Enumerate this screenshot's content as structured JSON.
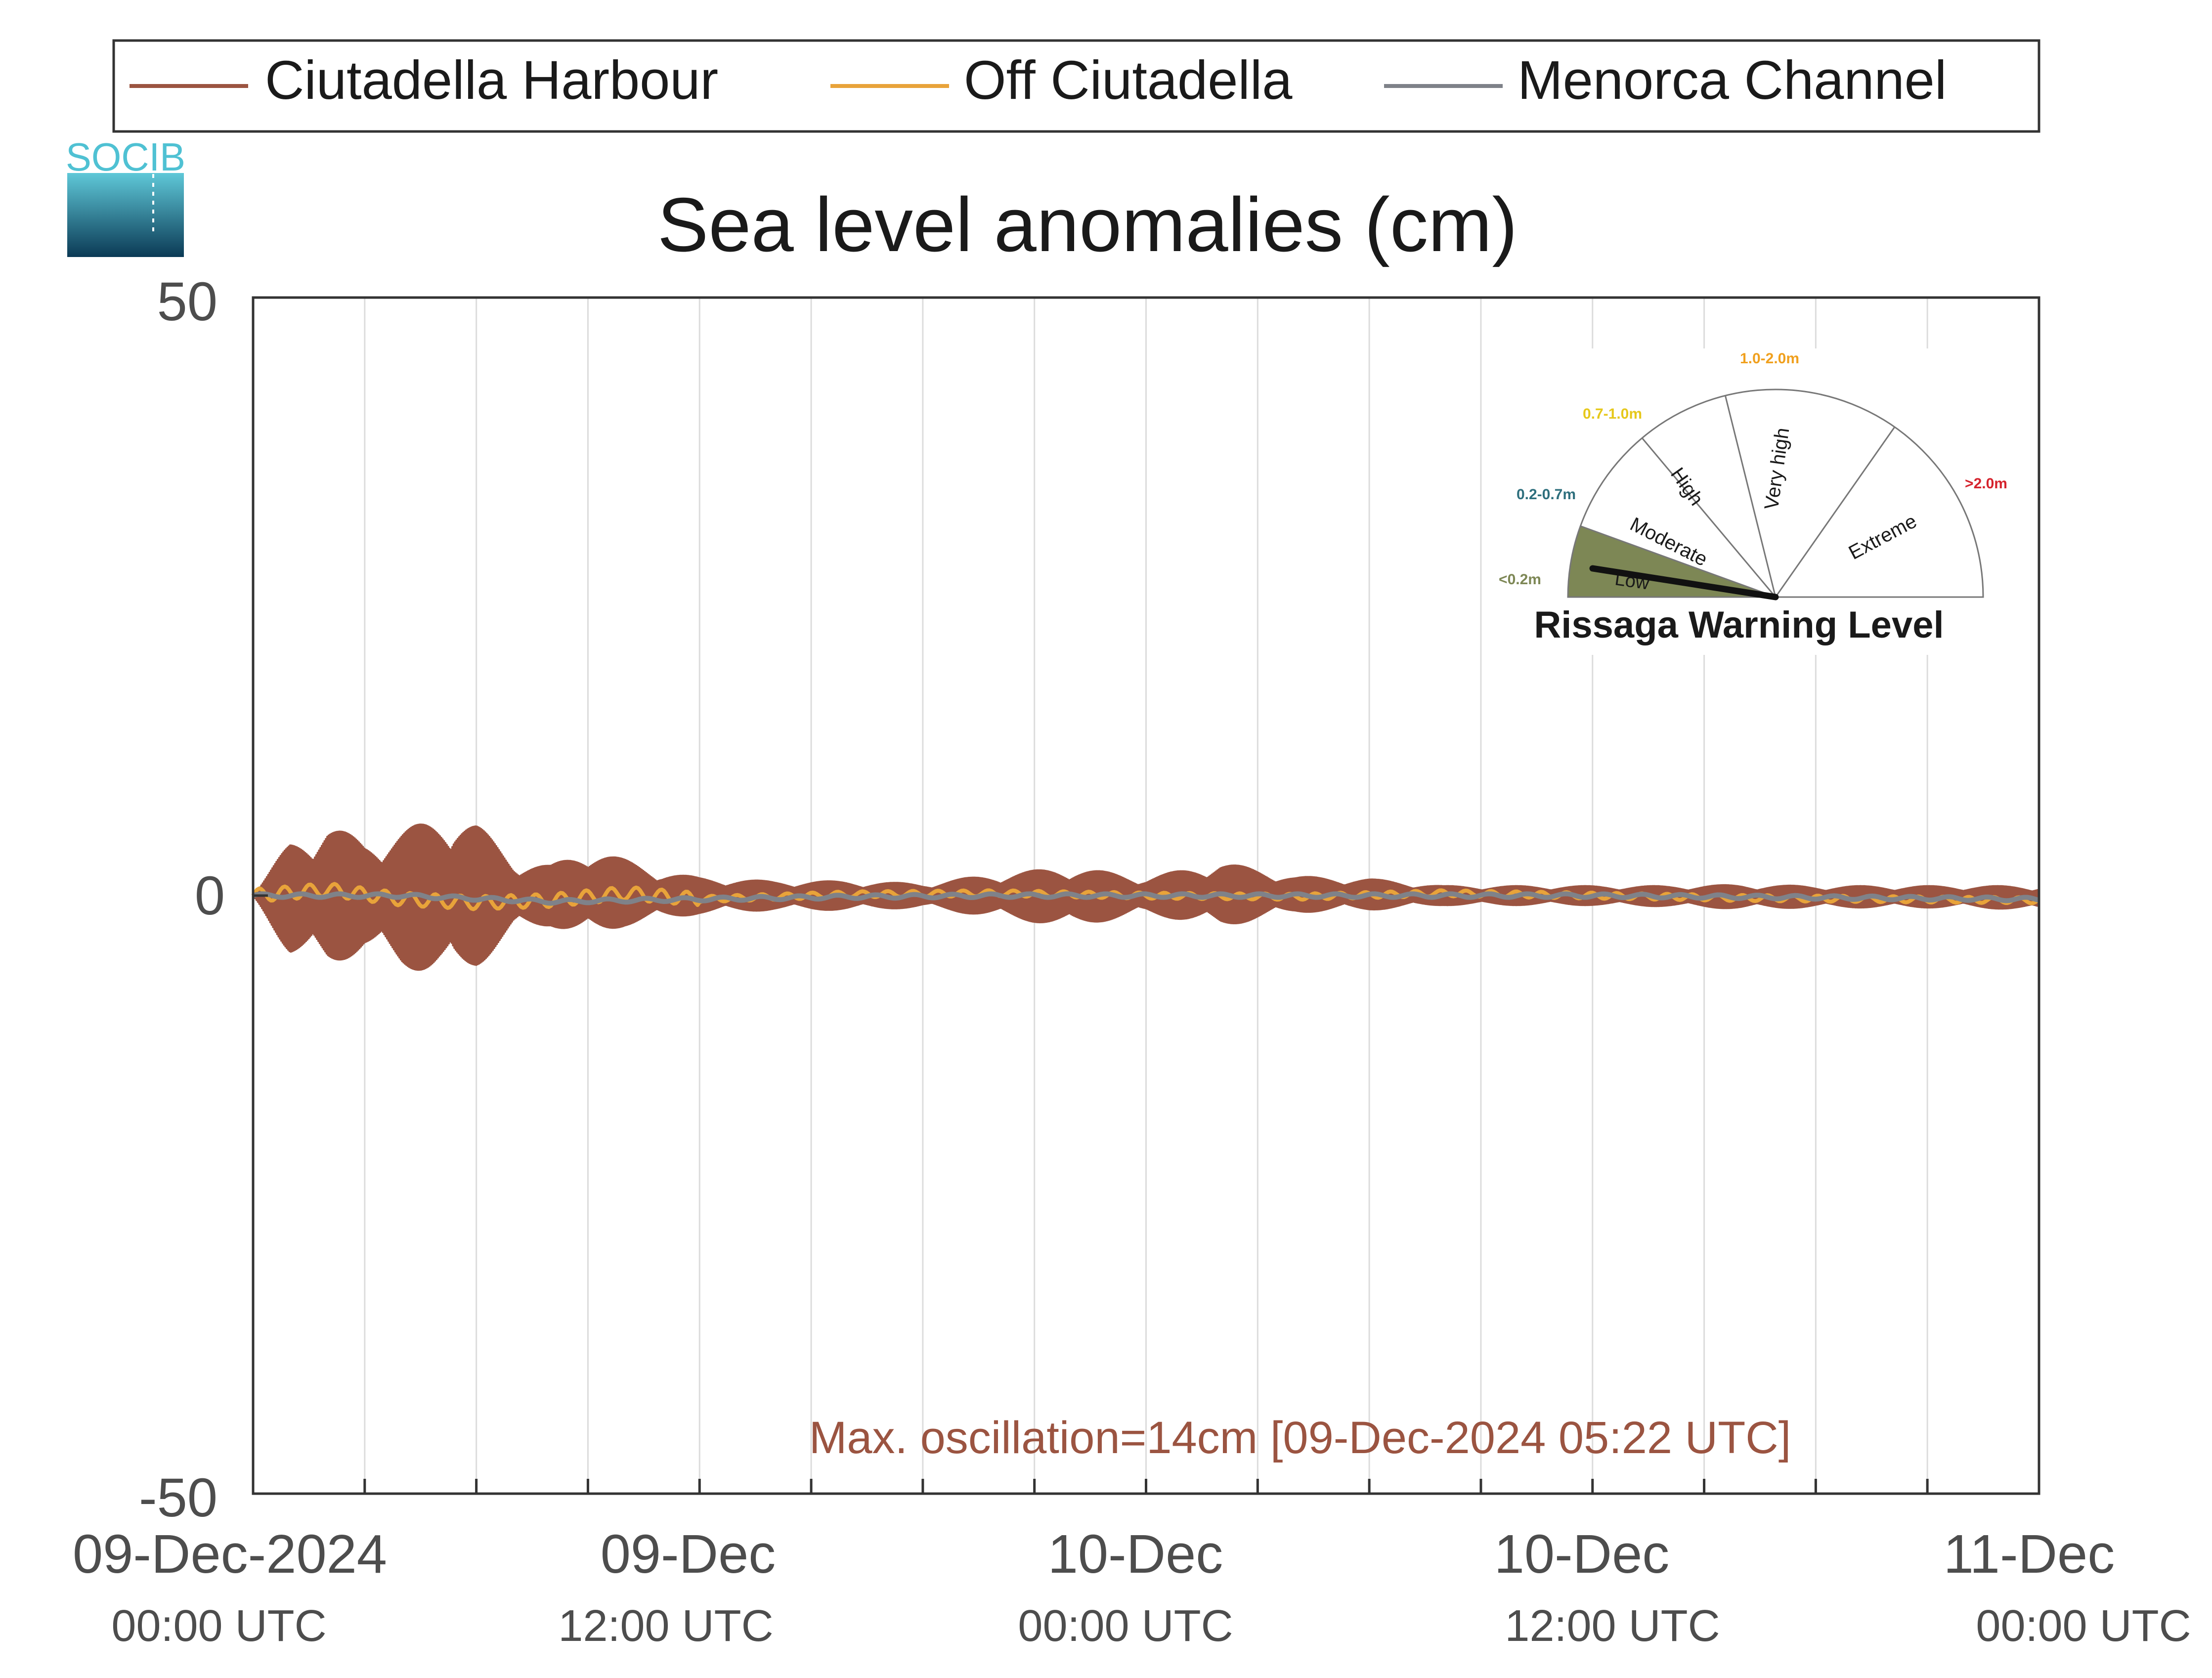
{
  "logo_text": "SOCIB",
  "colors": {
    "harbour": "#9b5441",
    "off": "#e8a33a",
    "channel": "#7f8289",
    "grid": "#dcdcdc",
    "axis": "#333333",
    "gauge_low": "#7d8755",
    "label_low": "#7d8755",
    "label_moderate": "#2e6f7d",
    "label_high": "#e6c81b",
    "label_veryhigh": "#f0a01e",
    "label_extreme": "#d5232d"
  },
  "chart_data": {
    "type": "line",
    "title": "Sea level anomalies (cm)",
    "xlabel": "",
    "ylabel": "",
    "ylim": [
      -50,
      50
    ],
    "yticks": [
      "50",
      "0",
      "-50"
    ],
    "xlim_hours": [
      0,
      48
    ],
    "xticks": [
      {
        "date": "09-Dec-2024",
        "time": "00:00 UTC"
      },
      {
        "date": "09-Dec",
        "time": "12:00 UTC"
      },
      {
        "date": "10-Dec",
        "time": "00:00 UTC"
      },
      {
        "date": "10-Dec",
        "time": "12:00 UTC"
      },
      {
        "date": "11-Dec",
        "time": "00:00 UTC"
      }
    ],
    "grid": true,
    "legend_position": "top",
    "series": [
      {
        "name": "Ciutadella Harbour",
        "color": "#9b5441",
        "envelope_time_hours": [
          0,
          1,
          2,
          3,
          4,
          5,
          5.4,
          6,
          7,
          8,
          9,
          10,
          11,
          12,
          14,
          16,
          18,
          20,
          22,
          24,
          26,
          28,
          30,
          32,
          34,
          36,
          38,
          40,
          42,
          44,
          46,
          48
        ],
        "envelope_upper_cm": [
          0,
          4.5,
          6,
          4.5,
          5.5,
          6.5,
          7,
          6,
          3,
          2.5,
          4,
          3,
          2,
          1.5,
          1.2,
          1.2,
          1,
          1.8,
          2.4,
          1.5,
          2.8,
          1.6,
          1.4,
          0.8,
          0.8,
          0.8,
          0.8,
          0.9,
          0.8,
          0.8,
          0.8,
          0.8
        ],
        "envelope_lower_cm": [
          0,
          -5,
          -6,
          -4.5,
          -6,
          -6.5,
          -7,
          -6,
          -3,
          -2.5,
          -3.5,
          -2.5,
          -2,
          -1.5,
          -1.2,
          -1.2,
          -1,
          -1.8,
          -2.6,
          -1.5,
          -2.6,
          -1.4,
          -1.2,
          -0.8,
          -0.8,
          -0.8,
          -0.9,
          -1.1,
          -1.0,
          -1.0,
          -1.0,
          -1.2
        ]
      },
      {
        "name": "Off Ciutadella",
        "color": "#e8a33a",
        "time_hours": [
          0,
          2,
          4,
          6,
          8,
          10,
          12,
          16,
          20,
          24,
          28,
          32,
          36,
          40,
          44,
          48
        ],
        "values_cm": [
          0,
          0.5,
          -0.3,
          -0.6,
          -0.4,
          0.2,
          -0.3,
          0.1,
          0.2,
          0,
          -0.1,
          0.2,
          0,
          -0.2,
          -0.3,
          -0.4
        ]
      },
      {
        "name": "Menorca Channel",
        "color": "#7f8289",
        "time_hours": [
          0,
          4,
          8,
          12,
          16,
          20,
          24,
          28,
          32,
          36,
          40,
          44,
          48
        ],
        "values_cm": [
          0,
          0,
          -0.5,
          -0.3,
          -0.1,
          0,
          0,
          0,
          0,
          0,
          -0.1,
          -0.2,
          -0.3
        ]
      }
    ],
    "annotation": "Max. oscillation=14cm [09-Dec-2024 05:22 UTC]",
    "warning_gauge": {
      "title": "Rissaga Warning Level",
      "current_level": "Low",
      "levels": [
        {
          "name": "Low",
          "range": "<0.2m",
          "color": "#7d8755"
        },
        {
          "name": "Moderate",
          "range": "0.2-0.7m",
          "color": "#2e6f7d"
        },
        {
          "name": "High",
          "range": "0.7-1.0m",
          "color": "#e6c81b"
        },
        {
          "name": "Very high",
          "range": "1.0-2.0m",
          "color": "#f0a01e"
        },
        {
          "name": "Extreme",
          "range": ">2.0m",
          "color": "#d5232d"
        }
      ]
    }
  }
}
